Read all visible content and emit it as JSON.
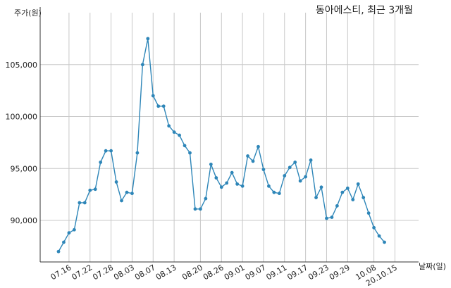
{
  "chart_data": {
    "type": "line",
    "title": "동아에스티, 최근 3개월",
    "ylabel": "주가(원)",
    "xlabel": "날짜(일)",
    "ylim": [
      86000,
      110000
    ],
    "y_ticks": [
      90000,
      95000,
      100000,
      105000
    ],
    "y_tick_labels": [
      "90,000",
      "95,000",
      "100,000",
      "105,000"
    ],
    "x_tick_labels": [
      "07.16",
      "07.22",
      "07.28",
      "08.03",
      "08.07",
      "08.13",
      "08.20",
      "08.26",
      "09.01",
      "09.07",
      "09.11",
      "09.17",
      "09.23",
      "09.29",
      "10.08",
      "20.10.15"
    ],
    "x_tick_index": [
      2,
      6,
      10,
      14,
      18,
      22,
      27,
      31,
      35,
      39,
      43,
      47,
      51,
      55,
      60,
      64
    ],
    "grid": true,
    "series": [
      {
        "color": "#2e86b8",
        "values": [
          87000,
          87900,
          88800,
          89100,
          91700,
          91700,
          92900,
          93000,
          95600,
          96700,
          96700,
          93700,
          91900,
          92700,
          92600,
          96500,
          105000,
          107500,
          102000,
          101000,
          101000,
          99100,
          98500,
          98200,
          97200,
          96500,
          91100,
          91100,
          92100,
          95400,
          94100,
          93200,
          93600,
          94600,
          93500,
          93300,
          96200,
          95700,
          97100,
          94900,
          93300,
          92700,
          92600,
          94300,
          95100,
          95600,
          93800,
          94200,
          95800,
          92200,
          93200,
          90200,
          90300,
          91400,
          92700,
          93100,
          92000,
          93500,
          92200,
          90700,
          89300,
          88500,
          87900
        ]
      }
    ]
  }
}
